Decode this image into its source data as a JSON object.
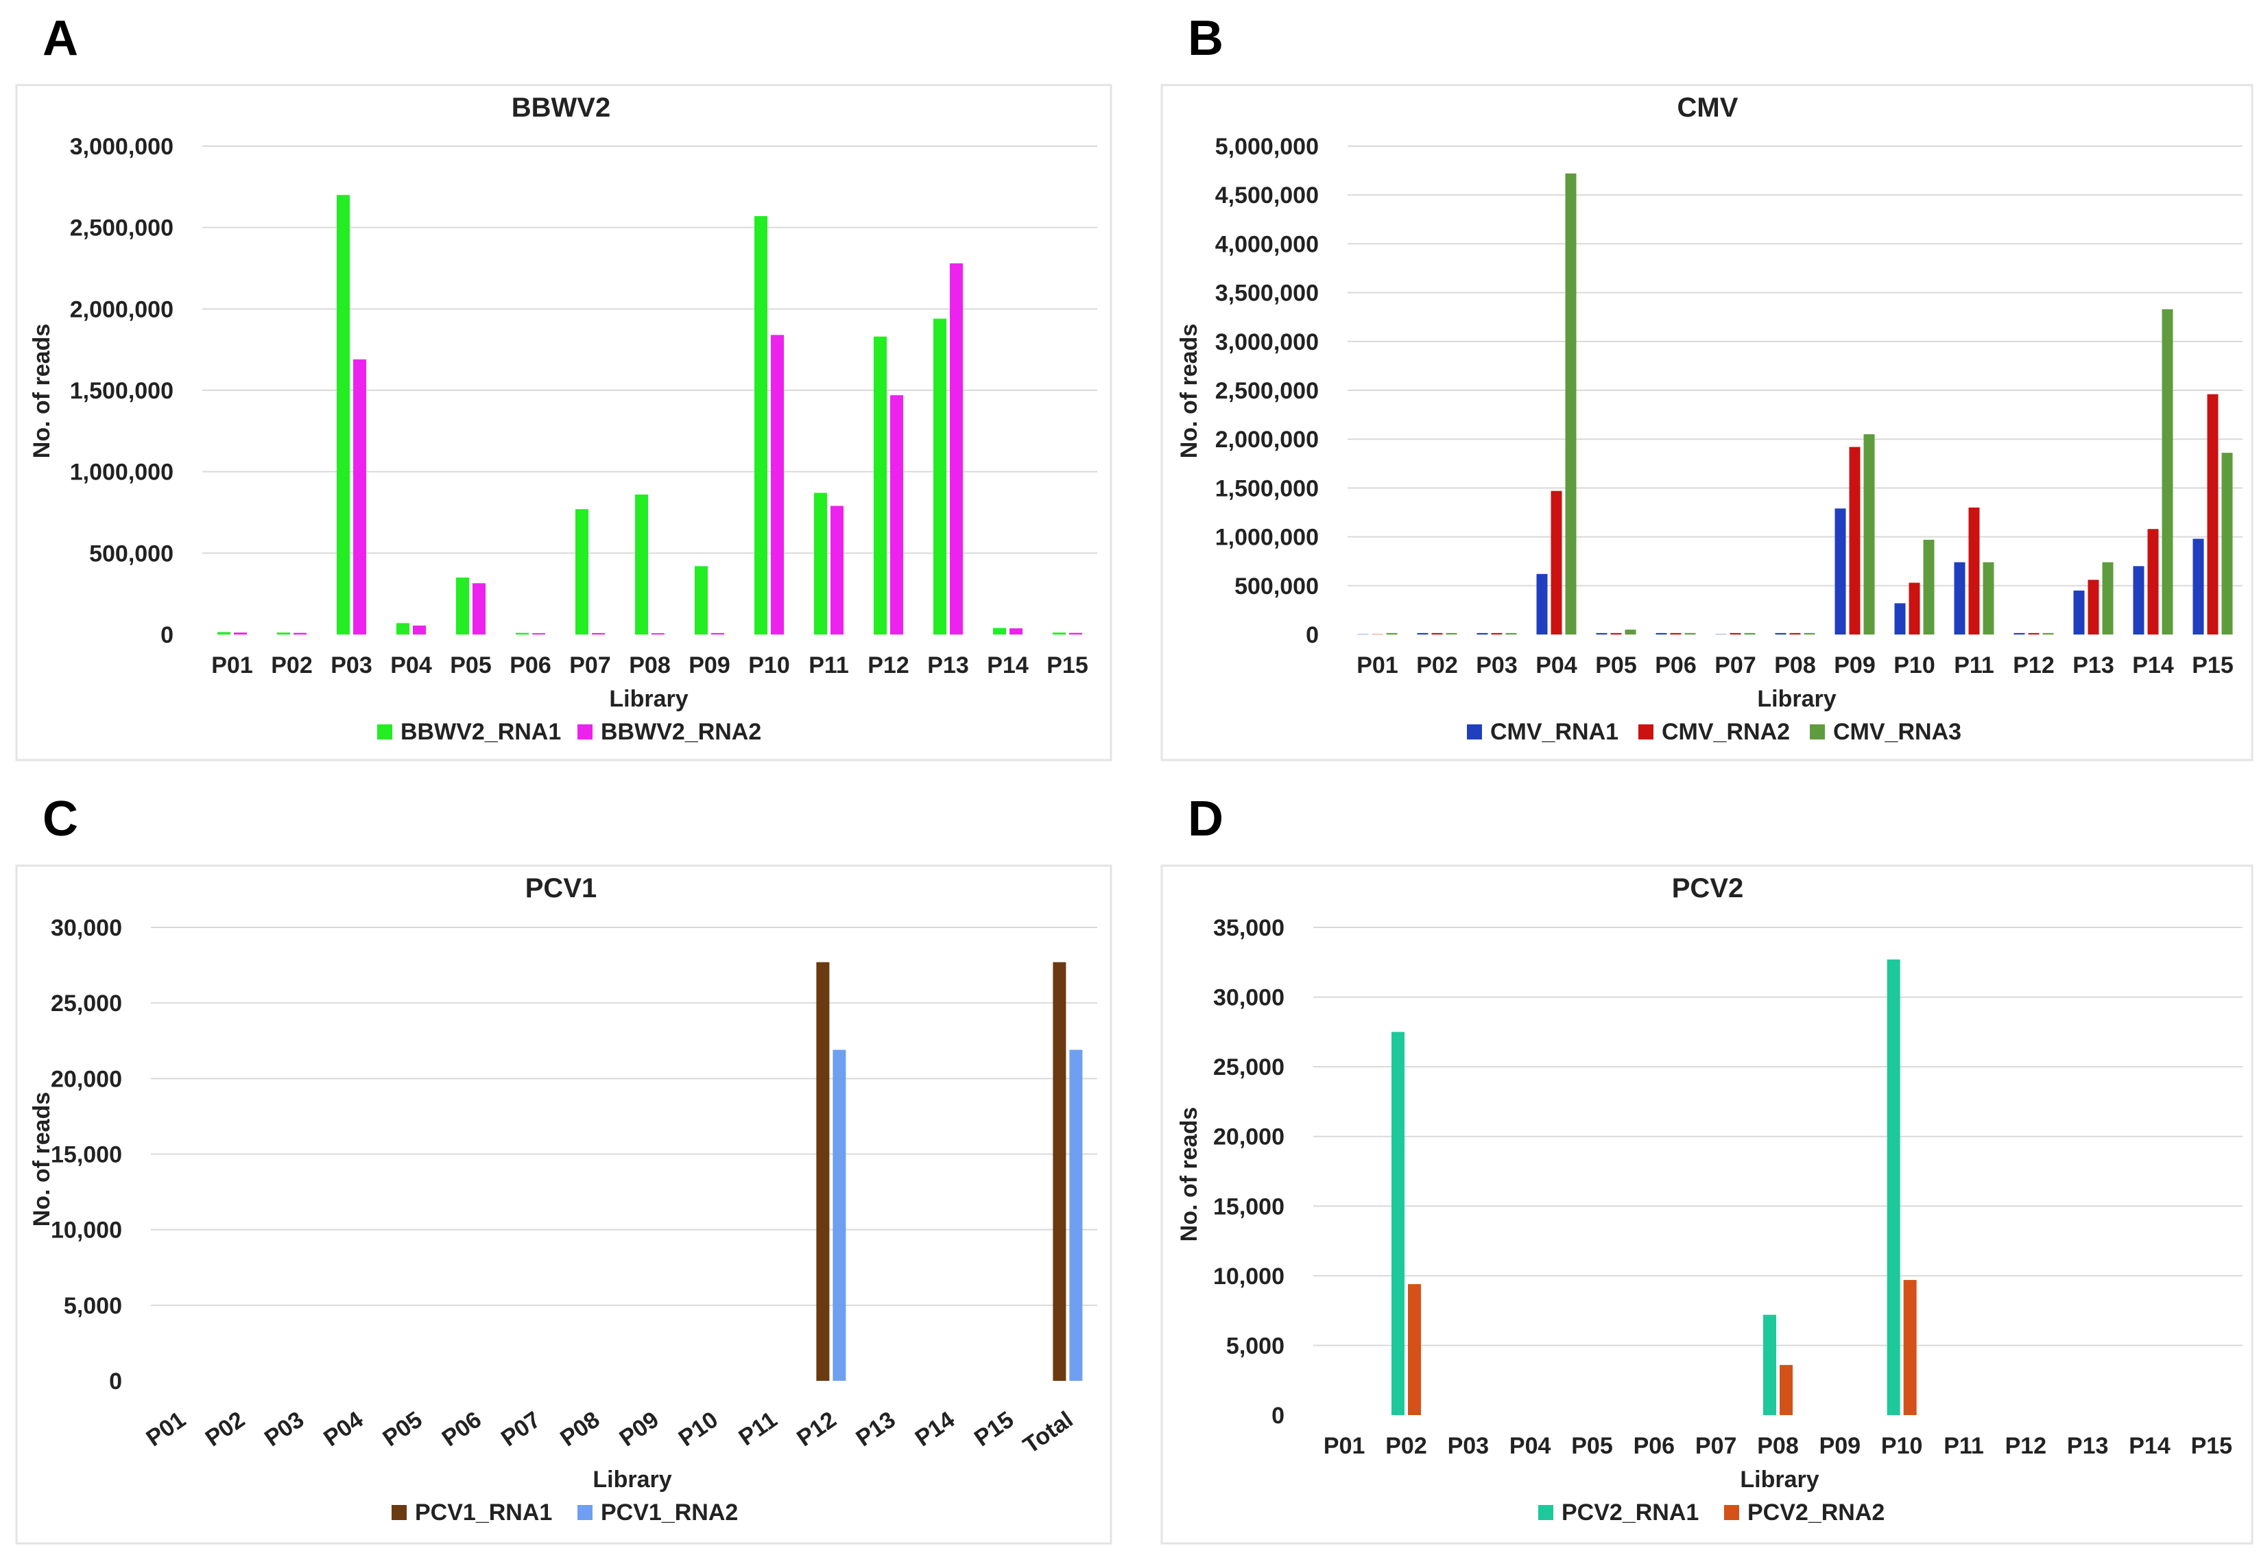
{
  "panels": [
    {
      "letter": "A"
    },
    {
      "letter": "B"
    },
    {
      "letter": "C"
    },
    {
      "letter": "D"
    }
  ],
  "chart_data": [
    {
      "type": "bar",
      "title": "BBWV2",
      "xlabel": "Library",
      "ylabel": "No. of reads",
      "ylim": [
        0,
        3000000
      ],
      "yticks": [
        0,
        500000,
        1000000,
        1500000,
        2000000,
        2500000,
        3000000
      ],
      "ytick_labels": [
        "0",
        "500,000",
        "1,000,000",
        "1,500,000",
        "2,000,000",
        "2,500,000",
        "3,000,000"
      ],
      "grid": true,
      "legend_position": "bottom",
      "x_labels_rotated": false,
      "categories": [
        "P01",
        "P02",
        "P03",
        "P04",
        "P05",
        "P06",
        "P07",
        "P08",
        "P09",
        "P10",
        "P11",
        "P12",
        "P13",
        "P14",
        "P15"
      ],
      "series": [
        {
          "name": "BBWV2_RNA1",
          "color": "#22ee22",
          "values": [
            15000,
            12000,
            2700000,
            70000,
            350000,
            10000,
            770000,
            860000,
            420000,
            2570000,
            870000,
            1830000,
            1940000,
            40000,
            12000
          ]
        },
        {
          "name": "BBWV2_RNA2",
          "color": "#ee22ee",
          "values": [
            12000,
            10000,
            1690000,
            55000,
            315000,
            8000,
            9000,
            8000,
            9000,
            1840000,
            790000,
            1470000,
            2280000,
            38000,
            10000
          ]
        }
      ]
    },
    {
      "type": "bar",
      "title": "CMV",
      "xlabel": "Library",
      "ylabel": "No. of reads",
      "ylim": [
        0,
        5000000
      ],
      "yticks": [
        0,
        500000,
        1000000,
        1500000,
        2000000,
        2500000,
        3000000,
        3500000,
        4000000,
        4500000,
        5000000
      ],
      "ytick_labels": [
        "0",
        "500,000",
        "1,000,000",
        "1,500,000",
        "2,000,000",
        "2,500,000",
        "3,000,000",
        "3,500,000",
        "4,000,000",
        "4,500,000",
        "5,000,000"
      ],
      "grid": true,
      "legend_position": "bottom",
      "x_labels_rotated": false,
      "categories": [
        "P01",
        "P02",
        "P03",
        "P04",
        "P05",
        "P06",
        "P07",
        "P08",
        "P09",
        "P10",
        "P11",
        "P12",
        "P13",
        "P14",
        "P15"
      ],
      "series": [
        {
          "name": "CMV_RNA1",
          "color": "#1f3fbf",
          "values": [
            3000,
            15000,
            15000,
            620000,
            15000,
            15000,
            3000,
            15000,
            1290000,
            320000,
            740000,
            15000,
            450000,
            700000,
            980000
          ]
        },
        {
          "name": "CMV_RNA2",
          "color": "#cc1111",
          "values": [
            3000,
            15000,
            15000,
            1470000,
            15000,
            15000,
            15000,
            15000,
            1920000,
            530000,
            1300000,
            15000,
            560000,
            1080000,
            2460000
          ]
        },
        {
          "name": "CMV_RNA3",
          "color": "#5e9c3e",
          "values": [
            15000,
            15000,
            15000,
            4720000,
            50000,
            15000,
            15000,
            15000,
            2050000,
            970000,
            740000,
            15000,
            740000,
            3330000,
            1860000
          ]
        }
      ]
    },
    {
      "type": "bar",
      "title": "PCV1",
      "xlabel": "Library",
      "ylabel": "No. of reads",
      "ylim": [
        0,
        30000
      ],
      "yticks": [
        0,
        5000,
        10000,
        15000,
        20000,
        25000,
        30000
      ],
      "ytick_labels": [
        "0",
        "5,000",
        "10,000",
        "15,000",
        "20,000",
        "25,000",
        "30,000"
      ],
      "grid": true,
      "legend_position": "bottom",
      "x_labels_rotated": true,
      "categories": [
        "P01",
        "P02",
        "P03",
        "P04",
        "P05",
        "P06",
        "P07",
        "P08",
        "P09",
        "P10",
        "P11",
        "P12",
        "P13",
        "P14",
        "P15",
        "Total"
      ],
      "series": [
        {
          "name": "PCV1_RNA1",
          "color": "#6b3a10",
          "values": [
            0,
            0,
            0,
            0,
            0,
            0,
            0,
            0,
            0,
            0,
            0,
            27700,
            0,
            0,
            0,
            27700
          ]
        },
        {
          "name": "PCV1_RNA2",
          "color": "#6f9ff0",
          "values": [
            0,
            0,
            0,
            0,
            0,
            0,
            0,
            0,
            0,
            0,
            0,
            21900,
            0,
            0,
            0,
            21900
          ]
        }
      ]
    },
    {
      "type": "bar",
      "title": "PCV2",
      "xlabel": "Library",
      "ylabel": "No. of reads",
      "ylim": [
        0,
        35000
      ],
      "yticks": [
        0,
        5000,
        10000,
        15000,
        20000,
        25000,
        30000,
        35000
      ],
      "ytick_labels": [
        "0",
        "5,000",
        "10,000",
        "15,000",
        "20,000",
        "25,000",
        "30,000",
        "35,000"
      ],
      "grid": true,
      "legend_position": "bottom",
      "x_labels_rotated": false,
      "categories": [
        "P01",
        "P02",
        "P03",
        "P04",
        "P05",
        "P06",
        "P07",
        "P08",
        "P09",
        "P10",
        "P11",
        "P12",
        "P13",
        "P14",
        "P15"
      ],
      "series": [
        {
          "name": "PCV2_RNA1",
          "color": "#1dc99a",
          "values": [
            0,
            27500,
            0,
            0,
            0,
            0,
            0,
            7200,
            0,
            32700,
            0,
            0,
            0,
            0,
            0
          ]
        },
        {
          "name": "PCV2_RNA2",
          "color": "#d45218",
          "values": [
            0,
            9400,
            0,
            0,
            0,
            0,
            0,
            3600,
            0,
            9700,
            0,
            0,
            0,
            0,
            0
          ]
        }
      ]
    }
  ]
}
